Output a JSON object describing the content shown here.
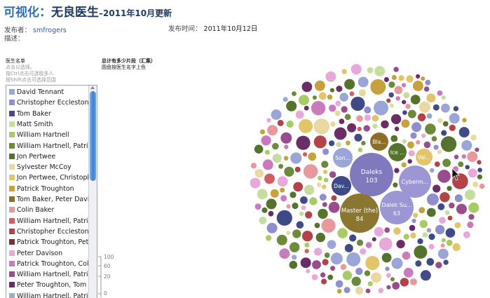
{
  "header": {
    "title_prefix": "可视化：",
    "title_main": "无良医生",
    "title_suffix": "–2011年10月更新"
  },
  "meta": {
    "publisher_label": "发布者：",
    "publisher_value": "smfrogers",
    "time_label": "发布时间：",
    "time_value": "2011年10月12日",
    "desc_label": "描述："
  },
  "doctor_panel": {
    "heading": "医生名单",
    "hints": [
      "点击以选择。",
      "按Ctrl点击可选取多人",
      "按Shift点击可选择范围"
    ],
    "items": [
      {
        "label": "David Tennant",
        "color": "#9aa6d8"
      },
      {
        "label": "Christopher Eccleston",
        "color": "#8f8fcf"
      },
      {
        "label": "Tom Baker",
        "color": "#434b86"
      },
      {
        "label": "Matt Smith",
        "color": "#c6dda0"
      },
      {
        "label": "William Hartnell",
        "color": "#a7cc65"
      },
      {
        "label": "William Hartnell, Patrick Troughton",
        "color": "#6c8b3a"
      },
      {
        "label": "Jon Pertwee",
        "color": "#56732e"
      },
      {
        "label": "Sylvester McCoy",
        "color": "#ead8a3"
      },
      {
        "label": "Jon Pertwee, Christopher Eccleston",
        "color": "#e4c46a"
      },
      {
        "label": "Patrick Troughton",
        "color": "#c7a23c"
      },
      {
        "label": "Tom Baker, Peter Davison",
        "color": "#8c6e29"
      },
      {
        "label": "Colin Baker",
        "color": "#e8999d"
      },
      {
        "label": "William Hartnell, Patrick Troughton, Jon Pertwee",
        "color": "#d35c62"
      },
      {
        "label": "Christopher Eccleston, David Tennant",
        "color": "#b24449"
      },
      {
        "label": "Patrick Troughton, Peter Davison",
        "color": "#7e2d33"
      },
      {
        "label": "Peter Davison",
        "color": "#e7a8dc"
      },
      {
        "label": "Patrick Troughton, Colin Baker",
        "color": "#c97bbd"
      },
      {
        "label": "William Hartnell, Patrick Troughton, Tom Baker",
        "color": "#9a4d8d"
      },
      {
        "label": "Peter Troughton, Tom Baker",
        "color": "#6b2d65"
      },
      {
        "label": "William Hartnell, Patrick Troughton, Jon Pertwee, Tom Baker",
        "color": "#9ab0c4"
      }
    ]
  },
  "size_panel": {
    "heading": "总计有多少片段（汇集）",
    "subheading": "圆盘按医生名字上色",
    "legend_ticks": [
      "100",
      "60",
      "20",
      "0"
    ]
  },
  "chart_data": {
    "type": "bubble",
    "labeled_bubbles": [
      {
        "label": "Daleks",
        "value": "103",
        "color": "#8079bd"
      },
      {
        "label": "Master (the)",
        "value": "84",
        "color": "#8b7630"
      },
      {
        "label": "Dalek Su...",
        "value": "63",
        "color": "#9c96d4"
      },
      {
        "label": "Cyberm...",
        "value": "",
        "color": "#9c96d4"
      },
      {
        "label": "Dav...",
        "value": "",
        "color": "#3e4a86"
      },
      {
        "label": "Son...",
        "value": "",
        "color": "#9aa6d8"
      },
      {
        "label": "Bla...",
        "value": "",
        "color": "#8c6e29"
      },
      {
        "label": "Ice ...",
        "value": "",
        "color": "#56732e"
      },
      {
        "label": "Val...",
        "value": "",
        "color": "#e4c46a"
      }
    ],
    "fill_palette": [
      "#9aa6d8",
      "#434b86",
      "#a7cc65",
      "#6c8b3a",
      "#56732e",
      "#c6dda0",
      "#ead8a3",
      "#e4c46a",
      "#c7a23c",
      "#e8999d",
      "#d35c62",
      "#e7a8dc",
      "#c97bbd",
      "#9a4d8d",
      "#6b2d65",
      "#8f8fcf",
      "#b24449",
      "#3e4a86"
    ]
  }
}
